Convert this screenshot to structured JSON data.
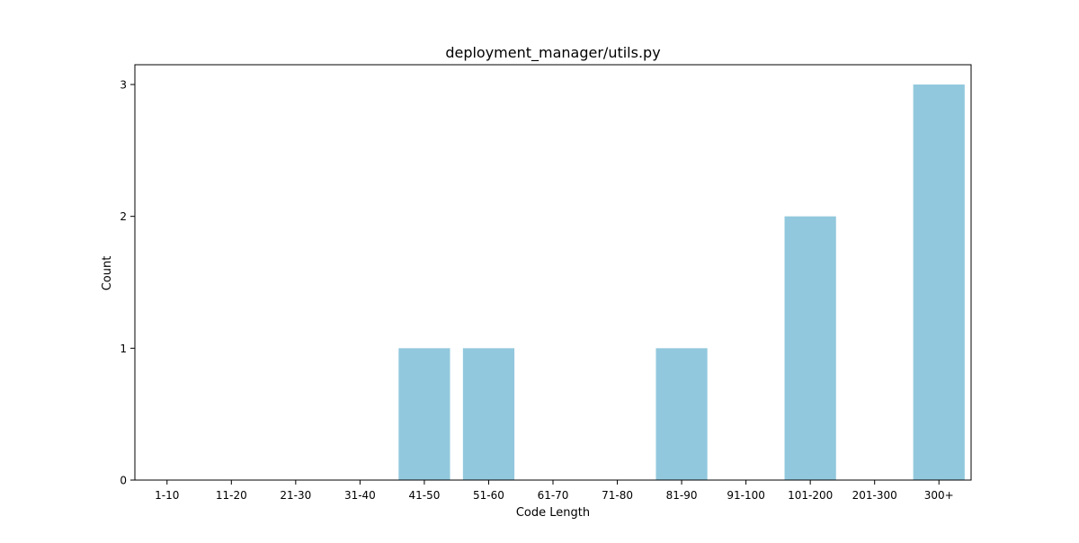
{
  "colors": {
    "bar": "#92c8dd",
    "axis": "#000000",
    "background": "#ffffff"
  },
  "chart_data": {
    "type": "bar",
    "title": "deployment_manager/utils.py",
    "xlabel": "Code Length",
    "ylabel": "Count",
    "categories": [
      "1-10",
      "11-20",
      "21-30",
      "31-40",
      "41-50",
      "51-60",
      "61-70",
      "71-80",
      "81-90",
      "91-100",
      "101-200",
      "201-300",
      "300+"
    ],
    "values": [
      0,
      0,
      0,
      0,
      1,
      1,
      0,
      0,
      1,
      0,
      2,
      0,
      3
    ],
    "ylim": [
      0,
      3.15
    ],
    "yticks": [
      0,
      1,
      2,
      3
    ],
    "grid": false
  }
}
